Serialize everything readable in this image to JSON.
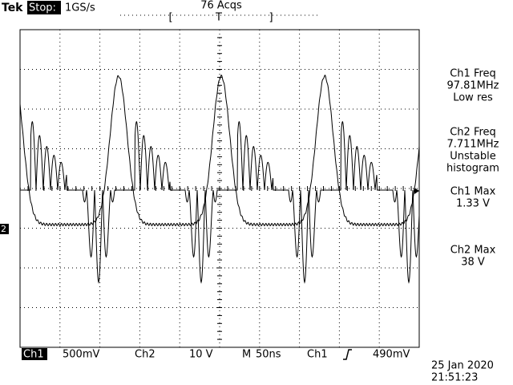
{
  "header": {
    "brand": "Tek",
    "status": "Stop:",
    "sample_rate": "1GS/s",
    "acquisitions": "76 Acqs",
    "trigger_position": "T"
  },
  "measurements": [
    [
      "Ch1 Freq",
      "97.81MHz",
      "Low res"
    ],
    [
      "Ch2 Freq",
      "7.711MHz",
      "Unstable",
      "histogram"
    ],
    [
      "Ch1 Max",
      "1.33 V"
    ],
    [
      "Ch2 Max",
      "38 V"
    ]
  ],
  "channel_marker": "2",
  "footer": {
    "ch1": "Ch1",
    "ch1_scale": "500mV",
    "ch2": "Ch2",
    "ch2_scale": "10 V",
    "timebase_label": "M",
    "timebase": "50ns",
    "trigger_source": "Ch1",
    "trigger_level": "490mV"
  },
  "timestamp": {
    "date": "25 Jan 2020",
    "time": "21:51:23"
  }
}
